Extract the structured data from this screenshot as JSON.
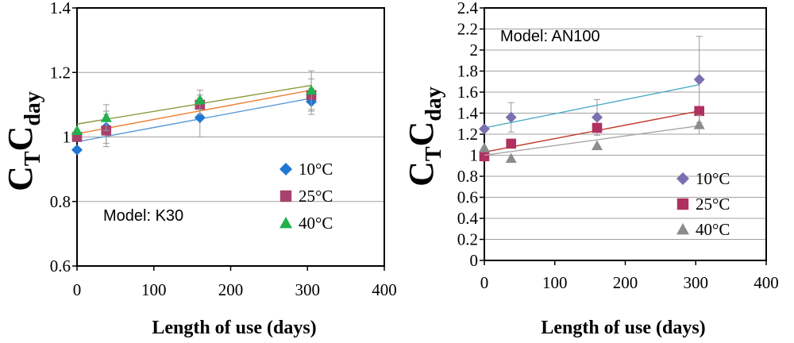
{
  "chart_data": [
    {
      "type": "scatter",
      "model_label": "Model: K30",
      "xlabel": "Length of use (days)",
      "ylabel_main": "C",
      "ylabel_sub1": "T",
      "ylabel_main2": "C",
      "ylabel_sub2": "day",
      "xlim": [
        0,
        400
      ],
      "ylim": [
        0.6,
        1.4
      ],
      "xticks": [
        0,
        100,
        200,
        300,
        400
      ],
      "xtick_labels": [
        "0",
        "100",
        "200",
        "300",
        "400"
      ],
      "yticks": [
        0.6,
        0.8,
        1,
        1.2,
        1.4
      ],
      "ytick_labels": [
        "0.6",
        "0.8",
        "1",
        "1.2",
        "1.4"
      ],
      "grid_y": true,
      "legend_position": "right",
      "series": [
        {
          "name": "10°C",
          "marker": "diamond",
          "color": "#1f77d4",
          "line_color": "#5b9bd5",
          "x": [
            0,
            38,
            160,
            305
          ],
          "y": [
            0.96,
            1.03,
            1.06,
            1.11
          ],
          "err": [
            0.0,
            0.05,
            0.06,
            0.04
          ],
          "fit": [
            [
              0,
              0.985
            ],
            [
              305,
              1.12
            ]
          ]
        },
        {
          "name": "25°C",
          "marker": "square",
          "color": "#a7406c",
          "line_color": "#ed7d31",
          "x": [
            0,
            38,
            160,
            305
          ],
          "y": [
            1.0,
            1.02,
            1.1,
            1.13
          ],
          "err": [
            0.0,
            0.05,
            0.03,
            0.05
          ],
          "fit": [
            [
              0,
              1.01
            ],
            [
              305,
              1.145
            ]
          ]
        },
        {
          "name": "40°C",
          "marker": "triangle",
          "color": "#22b14c",
          "line_color": "#8a9a3b",
          "x": [
            0,
            38,
            160,
            305
          ],
          "y": [
            1.02,
            1.06,
            1.115,
            1.145
          ],
          "err": [
            0.0,
            0.04,
            0.03,
            0.06
          ],
          "fit": [
            [
              0,
              1.04
            ],
            [
              305,
              1.16
            ]
          ]
        }
      ]
    },
    {
      "type": "scatter",
      "model_label": "Model: AN100",
      "xlabel": "Length of use  (days)",
      "ylabel_main": "C",
      "ylabel_sub1": "T",
      "ylabel_main2": "C",
      "ylabel_sub2": "day",
      "xlim": [
        0,
        400
      ],
      "ylim": [
        0,
        2.4
      ],
      "xticks": [
        0,
        100,
        200,
        300,
        400
      ],
      "xtick_labels": [
        "0",
        "100",
        "200",
        "300",
        "400"
      ],
      "yticks": [
        0,
        0.2,
        0.4,
        0.6,
        0.8,
        1,
        1.2,
        1.4,
        1.6,
        1.8,
        2,
        2.2,
        2.4
      ],
      "ytick_labels": [
        "0",
        "0.2",
        "0.4",
        "0.6",
        "0.8",
        "1",
        "1.2",
        "1.4",
        "1.6",
        "1.8",
        "2",
        "2.2",
        "2.4"
      ],
      "grid_y": true,
      "legend_position": "bottom-right",
      "series": [
        {
          "name": "10°C",
          "marker": "diamond",
          "color": "#7b6fb0",
          "line_color": "#4bacc6",
          "x": [
            0,
            38,
            160,
            305
          ],
          "y": [
            1.25,
            1.36,
            1.36,
            1.72
          ],
          "err": [
            0.0,
            0.14,
            0.17,
            0.41
          ],
          "fit": [
            [
              0,
              1.26
            ],
            [
              305,
              1.67
            ]
          ]
        },
        {
          "name": "25°C",
          "marker": "square",
          "color": "#b03060",
          "line_color": "#c0392b",
          "x": [
            0,
            38,
            160,
            305
          ],
          "y": [
            0.99,
            1.11,
            1.26,
            1.42
          ],
          "err": [
            0.0,
            0.0,
            0.0,
            0.0
          ],
          "fit": [
            [
              0,
              1.03
            ],
            [
              305,
              1.42
            ]
          ]
        },
        {
          "name": "40°C",
          "marker": "triangle",
          "color": "#8c8c8c",
          "line_color": "#a6a6a6",
          "x": [
            0,
            38,
            160,
            305
          ],
          "y": [
            1.07,
            0.97,
            1.09,
            1.29
          ],
          "err": [
            0.0,
            0.0,
            0.0,
            0.09
          ],
          "fit": [
            [
              0,
              1.0
            ],
            [
              305,
              1.28
            ]
          ]
        }
      ]
    }
  ]
}
